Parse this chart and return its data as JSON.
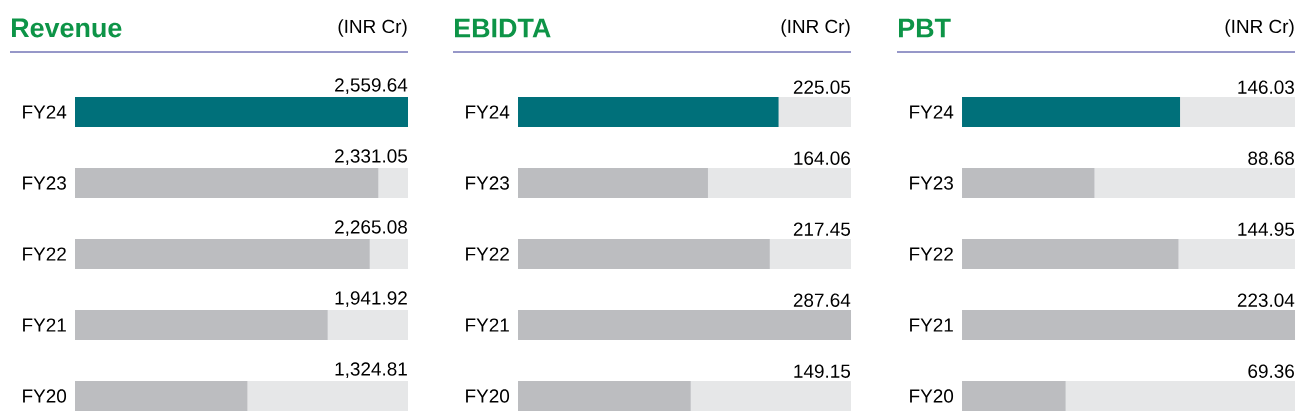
{
  "chart_data": [
    {
      "type": "bar",
      "orientation": "horizontal",
      "title": "Revenue",
      "subtitle": "(INR Cr)",
      "categories": [
        "FY24",
        "FY23",
        "FY22",
        "FY21",
        "FY20"
      ],
      "values": [
        2559.64,
        2331.05,
        2265.08,
        1941.92,
        1324.81
      ],
      "value_labels": [
        "2,559.64",
        "2,331.05",
        "2,265.08",
        "1,941.92",
        "1,324.81"
      ],
      "colors": [
        "#00707a",
        "#bcbdc0",
        "#bcbdc0",
        "#bcbdc0",
        "#bcbdc0"
      ],
      "xlim": [
        0,
        2559.64
      ],
      "tick_labels": "y"
    },
    {
      "type": "bar",
      "orientation": "horizontal",
      "title": "EBIDTA",
      "subtitle": "(INR Cr)",
      "categories": [
        "FY24",
        "FY23",
        "FY22",
        "FY21",
        "FY20"
      ],
      "values": [
        225.05,
        164.06,
        217.45,
        287.64,
        149.15
      ],
      "value_labels": [
        "225.05",
        "164.06",
        "217.45",
        "287.64",
        "149.15"
      ],
      "colors": [
        "#00707a",
        "#bcbdc0",
        "#bcbdc0",
        "#bcbdc0",
        "#bcbdc0"
      ],
      "xlim": [
        0,
        287.64
      ],
      "tick_labels": "y"
    },
    {
      "type": "bar",
      "orientation": "horizontal",
      "title": "PBT",
      "subtitle": "(INR Cr)",
      "categories": [
        "FY24",
        "FY23",
        "FY22",
        "FY21",
        "FY20"
      ],
      "values": [
        146.03,
        88.68,
        144.95,
        223.04,
        69.36
      ],
      "value_labels": [
        "146.03",
        "88.68",
        "144.95",
        "223.04",
        "69.36"
      ],
      "colors": [
        "#00707a",
        "#bcbdc0",
        "#bcbdc0",
        "#bcbdc0",
        "#bcbdc0"
      ],
      "xlim": [
        0,
        223.04
      ],
      "tick_labels": "y"
    }
  ]
}
